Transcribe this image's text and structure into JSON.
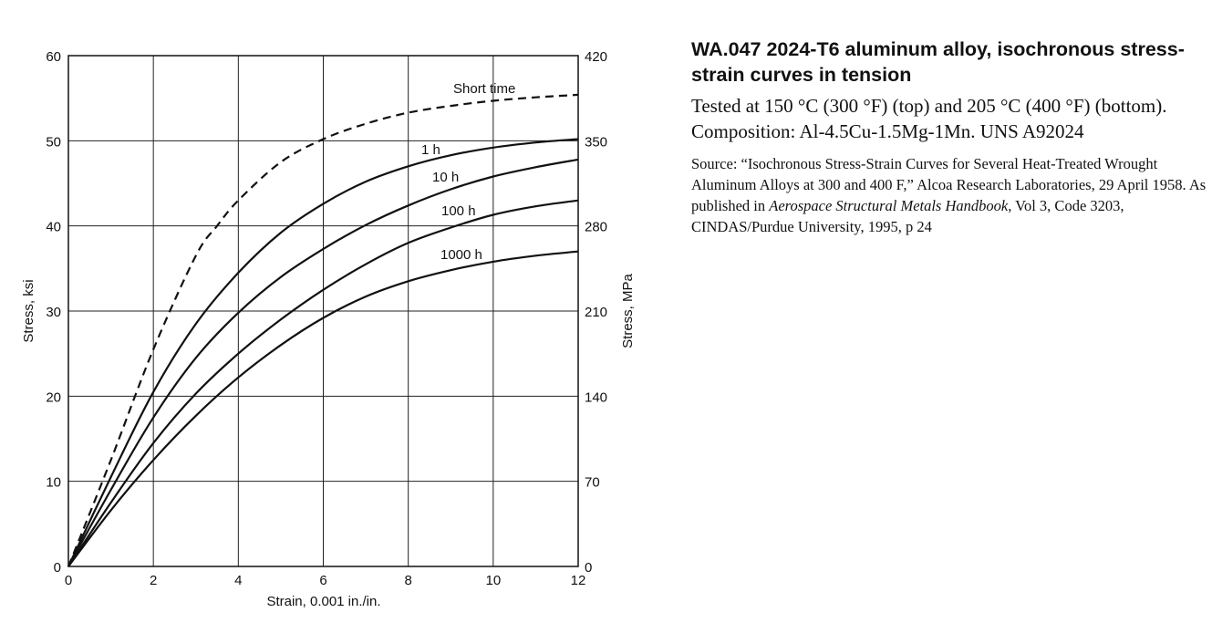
{
  "chart_data": {
    "type": "line",
    "title": "WA.047 2024-T6 aluminum alloy, isochronous stress-strain curves in tension",
    "xlabel": "Strain, 0.001 in./in.",
    "ylabel": "Stress, ksi",
    "ylabel_right": "Stress, MPa",
    "xlim": [
      0,
      12
    ],
    "ylim": [
      0,
      60
    ],
    "ylim_right": [
      0,
      420
    ],
    "x_ticks": [
      "0",
      "2",
      "4",
      "6",
      "8",
      "10",
      "12"
    ],
    "y_ticks": [
      "0",
      "10",
      "20",
      "30",
      "40",
      "50",
      "60"
    ],
    "y_ticks_right": [
      "0",
      "70",
      "140",
      "210",
      "280",
      "350",
      "420"
    ],
    "grid": true,
    "series": [
      {
        "name": "Short time",
        "style": "dashed",
        "x": [
          0,
          1,
          2,
          3,
          3.5,
          4,
          5,
          6,
          7,
          8,
          9,
          10,
          11,
          12
        ],
        "y": [
          0,
          12.5,
          25.5,
          36.5,
          40,
          43,
          47.5,
          50.2,
          52,
          53.3,
          54.1,
          54.7,
          55.1,
          55.4
        ]
      },
      {
        "name": "1 h",
        "style": "solid",
        "x": [
          0,
          1,
          2,
          3,
          4,
          5,
          6,
          7,
          8,
          9,
          10,
          11,
          12
        ],
        "y": [
          0,
          10.5,
          20.5,
          28.5,
          34.5,
          39.2,
          42.6,
          45.2,
          47,
          48.3,
          49.2,
          49.8,
          50.2
        ]
      },
      {
        "name": "10 h",
        "style": "solid",
        "x": [
          0,
          1,
          2,
          3,
          4,
          5,
          6,
          7,
          8,
          9,
          10,
          11,
          12
        ],
        "y": [
          0,
          9,
          17.5,
          24.5,
          29.8,
          34,
          37.3,
          40.1,
          42.4,
          44.3,
          45.8,
          46.9,
          47.8
        ]
      },
      {
        "name": "100 h",
        "style": "solid",
        "x": [
          0,
          1,
          2,
          3,
          4,
          5,
          6,
          7,
          8,
          9,
          10,
          11,
          12
        ],
        "y": [
          0,
          7.5,
          14.5,
          20.3,
          25,
          29,
          32.5,
          35.5,
          38,
          39.8,
          41.3,
          42.3,
          43
        ]
      },
      {
        "name": "1000 h",
        "style": "solid",
        "x": [
          0,
          1,
          2,
          3,
          4,
          5,
          6,
          7,
          8,
          9,
          10,
          11,
          12
        ],
        "y": [
          0,
          6.6,
          12.5,
          17.7,
          22.2,
          26,
          29.2,
          31.7,
          33.5,
          34.8,
          35.8,
          36.5,
          37
        ]
      }
    ]
  },
  "caption": {
    "title": "WA.047 2024-T6 aluminum alloy, isochronous stress-strain curves in tension",
    "description": "Tested at 150 °C (300 °F) (top) and 205 °C (400 °F) (bottom). Composition: Al-4.5Cu-1.5Mg-1Mn. UNS A92024",
    "source_prefix": "Source: “Isochronous Stress-Strain Curves for Several Heat-Treated Wrought Aluminum Alloys at 300 and 400 F,” Alcoa Research Laboratories, 29 April 1958. As published in ",
    "source_italic": "Aerospace Structural Metals Handbook,",
    "source_suffix": " Vol 3, Code 3203, CINDAS/Purdue University, 1995, p 24"
  }
}
